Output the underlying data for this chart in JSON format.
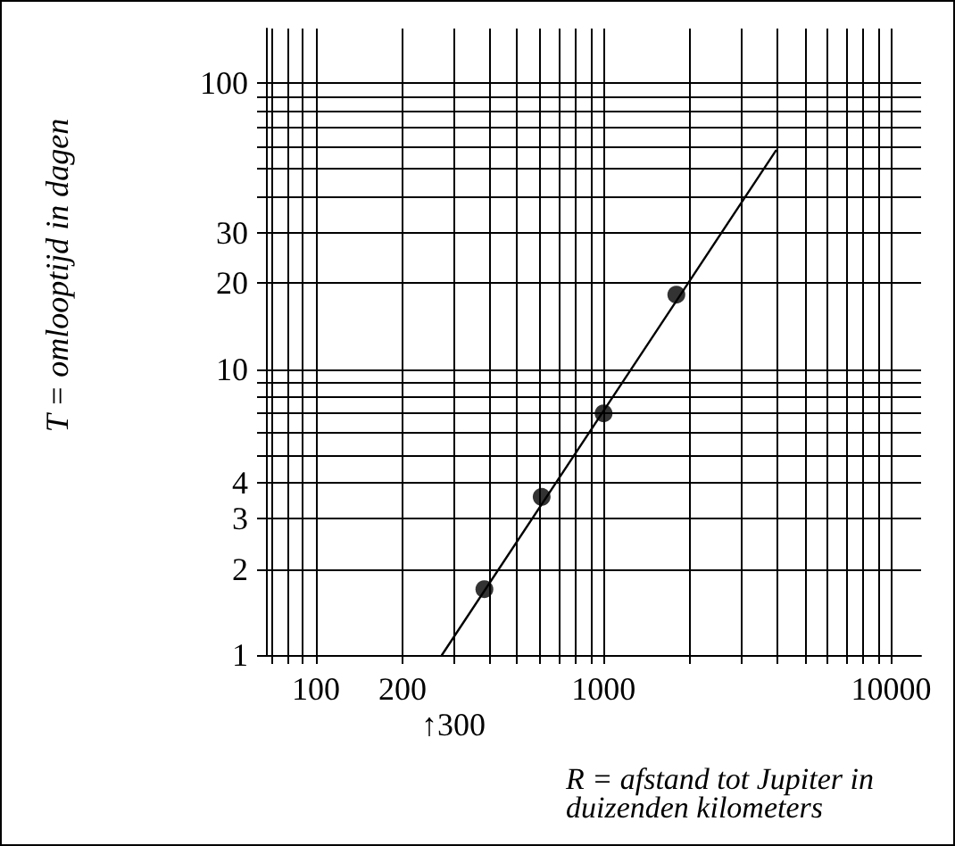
{
  "chart_data": {
    "type": "scatter",
    "xlabel": "R = afstand tot Jupiter in duizenden kilometers",
    "ylabel": "T = omlooptijd in dagen",
    "log": "xy",
    "grid": true,
    "xlim": [
      67,
      12700
    ],
    "ylim": [
      1,
      155
    ],
    "xticks": [
      {
        "value": 70,
        "label": null
      },
      {
        "value": 80,
        "label": null
      },
      {
        "value": 90,
        "label": null
      },
      100,
      200,
      {
        "value": 300,
        "label": null
      },
      {
        "value": 400,
        "label": null
      },
      {
        "value": 500,
        "label": null
      },
      {
        "value": 600,
        "label": null
      },
      {
        "value": 700,
        "label": null
      },
      {
        "value": 800,
        "label": null
      },
      {
        "value": 900,
        "label": null
      },
      1000,
      {
        "value": 2000,
        "label": null
      },
      {
        "value": 3000,
        "label": null
      },
      {
        "value": 4000,
        "label": null
      },
      {
        "value": 5000,
        "label": null
      },
      {
        "value": 6000,
        "label": null
      },
      {
        "value": 7000,
        "label": null
      },
      {
        "value": 8000,
        "label": null
      },
      {
        "value": 9000,
        "label": null
      },
      10000
    ],
    "yticks": [
      1,
      2,
      3,
      4,
      {
        "value": 5,
        "label": null
      },
      {
        "value": 6,
        "label": null
      },
      {
        "value": 7,
        "label": null
      },
      {
        "value": 8,
        "label": null
      },
      {
        "value": 9,
        "label": null
      },
      10,
      20,
      30,
      {
        "value": 40,
        "label": null
      },
      {
        "value": 50,
        "label": null
      },
      {
        "value": 60,
        "label": null
      },
      {
        "value": 70,
        "label": null
      },
      {
        "value": 80,
        "label": null
      },
      {
        "value": 90,
        "label": null
      },
      100
    ],
    "annotations": [
      "↑300"
    ],
    "series": [
      {
        "color": "#000000",
        "marker": "circle",
        "x": [
          385,
          609,
          1000,
          1790
        ],
        "values": [
          1.7,
          3.57,
          7.0,
          18.2
        ]
      },
      {
        "type": "line",
        "color": "#000000",
        "marker": "none",
        "line_style": "solid",
        "x": [
          274,
          3970
        ],
        "values": [
          1,
          58
        ]
      }
    ]
  }
}
